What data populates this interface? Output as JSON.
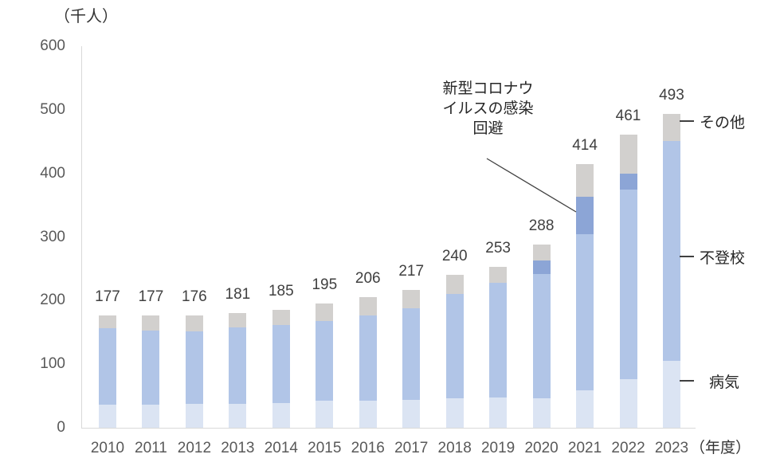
{
  "unit_label": "（千人）",
  "axis_unit_label": "（年度）",
  "annotation": {
    "lines": [
      "新型コロナウ",
      "イルスの感染",
      "回避"
    ],
    "target_series": "新型コロナウイルスの感染回避"
  },
  "legend": {
    "items": [
      {
        "label": "その他",
        "series_key": "other"
      },
      {
        "label": "不登校",
        "series_key": "school-refusal"
      },
      {
        "label": "病気",
        "series_key": "illness"
      }
    ]
  },
  "colors": {
    "illness": "#DBE4F3",
    "school_refusal": "#B1C5E7",
    "covid_avoidance": "#8CA5D6",
    "other": "#D2D0CE",
    "axis_line": "#D9D9D9",
    "tick_text": "#595959",
    "total_text": "#404040",
    "cjk_text": "#262626",
    "leader_line": "#404040"
  },
  "chart_data": {
    "type": "bar",
    "stacked": true,
    "title": "（千人）",
    "xlabel": "（年度）",
    "ylabel": "千人",
    "ylim": [
      0,
      600
    ],
    "yticks": [
      0,
      100,
      200,
      300,
      400,
      500,
      600
    ],
    "grid": false,
    "legend_position": "right",
    "categories": [
      "2010",
      "2011",
      "2012",
      "2013",
      "2014",
      "2015",
      "2016",
      "2017",
      "2018",
      "2019",
      "2020",
      "2021",
      "2022",
      "2023"
    ],
    "series": [
      {
        "name": "病気",
        "key": "illness",
        "color": "#DBE4F3",
        "values": [
          36,
          36,
          38,
          38,
          39,
          42,
          43,
          44,
          46,
          47,
          46,
          59,
          76,
          105
        ]
      },
      {
        "name": "不登校",
        "key": "school-refusal",
        "color": "#B1C5E7",
        "values": [
          120,
          117,
          113,
          120,
          123,
          126,
          134,
          144,
          165,
          181,
          196,
          245,
          299,
          346
        ]
      },
      {
        "name": "新型コロナウイルスの感染回避",
        "key": "covid-avoidance",
        "color": "#8CA5D6",
        "values": [
          0,
          0,
          0,
          0,
          0,
          0,
          0,
          0,
          0,
          0,
          21,
          59,
          24,
          0
        ]
      },
      {
        "name": "その他",
        "key": "other",
        "color": "#D2D0CE",
        "values": [
          21,
          24,
          25,
          23,
          23,
          27,
          29,
          29,
          29,
          25,
          25,
          51,
          62,
          42
        ]
      }
    ],
    "totals": [
      177,
      177,
      176,
      181,
      185,
      195,
      206,
      217,
      240,
      253,
      288,
      414,
      461,
      493
    ]
  }
}
